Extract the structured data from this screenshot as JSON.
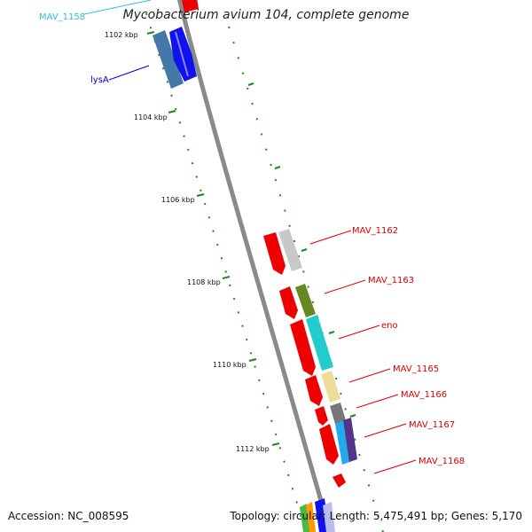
{
  "title": "Mycobacterium avium 104, complete genome",
  "accession": "Accession: NC_008595",
  "topology": "Topology: circular; Length: 5,475,491 bp; Genes: 5,170",
  "ticks": [
    "1102 kbp",
    "1104 kbp",
    "1106 kbp",
    "1108 kbp",
    "1110 kbp",
    "1112 kbp"
  ],
  "gene_labels": [
    {
      "text": "MAV_1158",
      "color": "#33bbdd"
    },
    {
      "text": "lysA",
      "color": "#0000cc"
    },
    {
      "text": "MAV_1162",
      "color": "#dd0000"
    },
    {
      "text": "MAV_1163",
      "color": "#dd0000"
    },
    {
      "text": "eno",
      "color": "#dd0000"
    },
    {
      "text": "MAV_1165",
      "color": "#dd0000"
    },
    {
      "text": "MAV_1166",
      "color": "#dd0000"
    },
    {
      "text": "MAV_1167",
      "color": "#dd0000"
    },
    {
      "text": "MAV_1168",
      "color": "#dd0000"
    }
  ],
  "colors": {
    "backbone": "#888888",
    "tick_dots": "#1a8a1a",
    "gene_red": "#ee0000",
    "gene_blue": "#1111ee",
    "gene_steelblue": "#4477aa",
    "gene_lightgray": "#c8c8c8",
    "gene_olive": "#668822",
    "gene_cyan": "#22cccc",
    "gene_khaki": "#eedd99",
    "gene_darkgray": "#777777",
    "gene_skyblue": "#22aaee",
    "gene_purple": "#553388"
  }
}
